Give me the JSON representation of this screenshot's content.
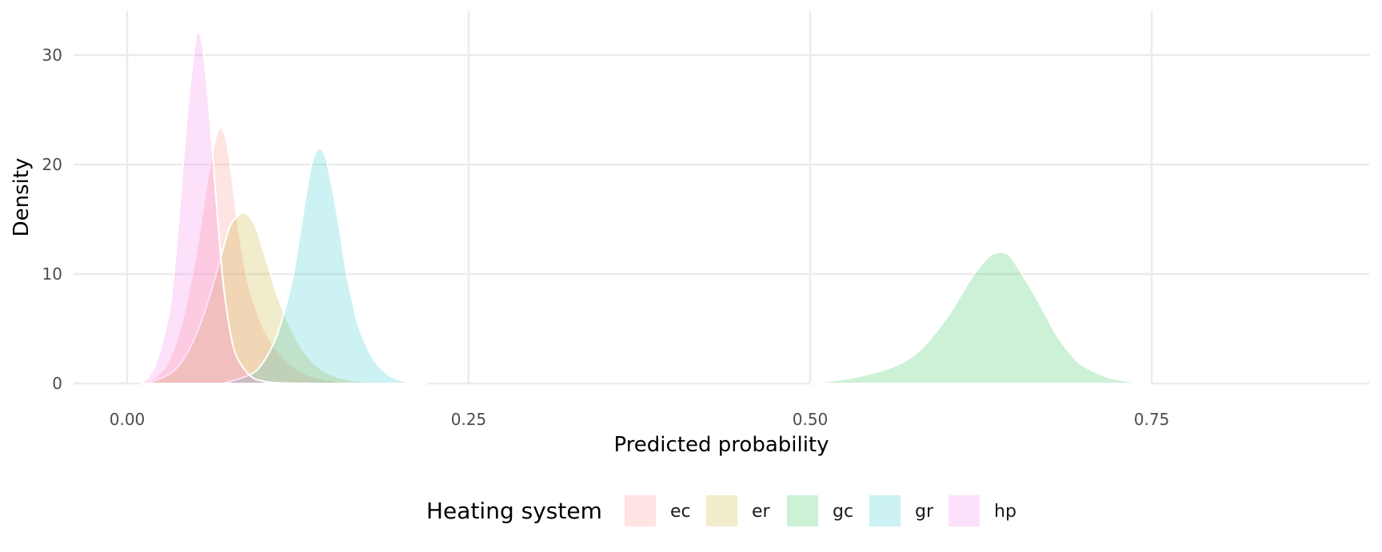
{
  "chart_data": {
    "type": "area",
    "xlabel": "Predicted probability",
    "ylabel": "Density",
    "xlim": [
      -0.04,
      0.91
    ],
    "ylim": [
      0,
      33
    ],
    "x_ticks": [
      0.0,
      0.25,
      0.5,
      0.75
    ],
    "x_tick_labels": [
      "0.00",
      "0.25",
      "0.50",
      "0.75"
    ],
    "y_ticks": [
      0,
      10,
      20,
      30
    ],
    "y_tick_labels": [
      "0",
      "10",
      "20",
      "30"
    ],
    "grid": true,
    "legend": {
      "title": "Heating system",
      "position": "bottom"
    },
    "series": [
      {
        "name": "ec",
        "color": "#F8766D",
        "x": [
          0.012,
          0.02,
          0.03,
          0.04,
          0.05,
          0.055,
          0.06,
          0.065,
          0.068,
          0.07,
          0.073,
          0.076,
          0.08,
          0.085,
          0.09,
          0.1,
          0.11,
          0.12,
          0.13,
          0.14,
          0.15,
          0.16,
          0.17,
          0.19
        ],
        "y": [
          0,
          0.5,
          2.0,
          5.5,
          11.5,
          15.5,
          19.5,
          22.5,
          23.4,
          23.2,
          22.0,
          19.5,
          15.5,
          11.5,
          8.5,
          5.0,
          3.0,
          1.7,
          0.9,
          0.5,
          0.25,
          0.1,
          0.05,
          0
        ]
      },
      {
        "name": "er",
        "color": "#B79F00",
        "x": [
          0.015,
          0.03,
          0.04,
          0.05,
          0.06,
          0.07,
          0.075,
          0.08,
          0.085,
          0.09,
          0.095,
          0.1,
          0.105,
          0.11,
          0.12,
          0.13,
          0.14,
          0.15,
          0.16,
          0.18,
          0.2,
          0.22
        ],
        "y": [
          0,
          0.8,
          2.0,
          4.3,
          7.8,
          12.2,
          14.3,
          15.2,
          15.6,
          15.2,
          14.0,
          12.0,
          10.0,
          8.0,
          5.0,
          2.8,
          1.5,
          0.8,
          0.4,
          0.12,
          0.03,
          0
        ]
      },
      {
        "name": "gc",
        "color": "#00BA38",
        "x": [
          0.5,
          0.53,
          0.56,
          0.58,
          0.6,
          0.61,
          0.62,
          0.63,
          0.635,
          0.64,
          0.645,
          0.65,
          0.66,
          0.67,
          0.68,
          0.69,
          0.7,
          0.72,
          0.74,
          0.75
        ],
        "y": [
          0,
          0.5,
          1.5,
          3.0,
          6.0,
          8.0,
          10.0,
          11.5,
          11.9,
          12.0,
          11.8,
          11.0,
          9.0,
          6.8,
          4.5,
          2.8,
          1.6,
          0.5,
          0.1,
          0
        ]
      },
      {
        "name": "gr",
        "color": "#00BFC4",
        "x": [
          0.07,
          0.09,
          0.1,
          0.11,
          0.12,
          0.125,
          0.13,
          0.135,
          0.14,
          0.145,
          0.15,
          0.155,
          0.16,
          0.165,
          0.17,
          0.18,
          0.19,
          0.2,
          0.21,
          0.22
        ],
        "y": [
          0,
          0.8,
          2.0,
          4.5,
          9.0,
          12.5,
          16.5,
          20.0,
          21.4,
          20.8,
          18.0,
          14.5,
          10.5,
          7.5,
          5.0,
          2.3,
          0.9,
          0.3,
          0.08,
          0
        ]
      },
      {
        "name": "hp",
        "color": "#F564E3",
        "x": [
          0.01,
          0.02,
          0.03,
          0.035,
          0.04,
          0.045,
          0.05,
          0.052,
          0.055,
          0.06,
          0.065,
          0.07,
          0.075,
          0.08,
          0.09,
          0.1,
          0.11,
          0.12,
          0.14
        ],
        "y": [
          0,
          1.5,
          6.0,
          11.0,
          18.5,
          26.0,
          31.3,
          32.0,
          31.0,
          25.0,
          17.0,
          9.5,
          5.0,
          2.5,
          0.7,
          0.2,
          0.06,
          0.02,
          0
        ]
      }
    ]
  }
}
